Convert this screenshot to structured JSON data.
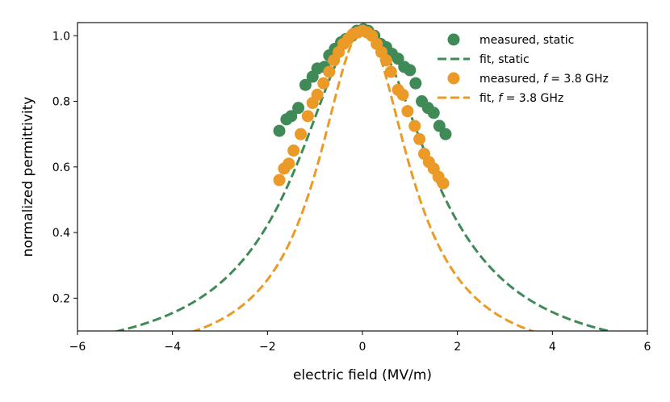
{
  "chart_data": {
    "type": "scatter",
    "title": "",
    "xlabel": "electric field (MV/m)",
    "ylabel": "normalized permittivity",
    "xlim": [
      -6,
      6
    ],
    "ylim": [
      0.1,
      1.04
    ],
    "xticks": [
      -6,
      -4,
      -2,
      0,
      2,
      4,
      6
    ],
    "xtick_labels": [
      "−6",
      "−4",
      "−2",
      "0",
      "2",
      "4",
      "6"
    ],
    "yticks": [
      0.2,
      0.4,
      0.6,
      0.8,
      1.0
    ],
    "ytick_labels": [
      "0.2",
      "0.4",
      "0.6",
      "0.8",
      "1.0"
    ],
    "grid": false,
    "legend_position": "top-right",
    "legend": [
      {
        "label": "measured, static",
        "kind": "marker",
        "color": "#3f8a57"
      },
      {
        "label": "fit, static",
        "kind": "dashed-line",
        "color": "#3f8a57"
      },
      {
        "label_prefix": "measured, ",
        "label_italic": "f",
        "label_suffix": " = 3.8 GHz",
        "kind": "marker",
        "color": "#eb9a27"
      },
      {
        "label_prefix": "fit, ",
        "label_italic": "f",
        "label_suffix": " = 3.8 GHz",
        "kind": "dashed-line",
        "color": "#eb9a27"
      }
    ],
    "series": [
      {
        "name": "measured, static",
        "kind": "scatter",
        "color": "#3f8a57",
        "x": [
          -1.75,
          -1.6,
          -1.5,
          -1.35,
          -1.2,
          -1.05,
          -0.95,
          -0.8,
          -0.7,
          -0.58,
          -0.45,
          -0.35,
          -0.22,
          -0.12,
          0.02,
          0.12,
          0.25,
          0.38,
          0.5,
          0.62,
          0.75,
          0.88,
          1.0,
          1.12,
          1.25,
          1.38,
          1.5,
          1.62,
          1.75
        ],
        "y": [
          0.71,
          0.745,
          0.755,
          0.78,
          0.85,
          0.875,
          0.9,
          0.905,
          0.94,
          0.96,
          0.98,
          0.99,
          1.0,
          1.015,
          1.02,
          1.015,
          1.0,
          0.975,
          0.965,
          0.945,
          0.93,
          0.905,
          0.895,
          0.855,
          0.8,
          0.78,
          0.765,
          0.725,
          0.7
        ]
      },
      {
        "name": "fit, static",
        "kind": "line",
        "style": "dashed",
        "color": "#3f8a57",
        "model": "lorentzian",
        "amplitude": 1.02,
        "center": 0.02,
        "half_width": 1.7
      },
      {
        "name": "measured, f = 3.8 GHz",
        "kind": "scatter",
        "color": "#eb9a27",
        "x": [
          -1.75,
          -1.65,
          -1.55,
          -1.45,
          -1.3,
          -1.15,
          -1.05,
          -0.95,
          -0.82,
          -0.7,
          -0.6,
          -0.5,
          -0.4,
          -0.3,
          -0.2,
          -0.1,
          0.0,
          0.1,
          0.2,
          0.3,
          0.4,
          0.5,
          0.6,
          0.75,
          0.85,
          0.95,
          1.1,
          1.2,
          1.3,
          1.4,
          1.5,
          1.6,
          1.7
        ],
        "y": [
          0.56,
          0.595,
          0.61,
          0.65,
          0.7,
          0.755,
          0.795,
          0.82,
          0.855,
          0.89,
          0.925,
          0.95,
          0.975,
          0.99,
          1.005,
          1.01,
          1.015,
          1.01,
          1.0,
          0.975,
          0.95,
          0.925,
          0.89,
          0.835,
          0.82,
          0.77,
          0.725,
          0.685,
          0.64,
          0.615,
          0.595,
          0.57,
          0.55
        ]
      },
      {
        "name": "fit, f = 3.8 GHz",
        "kind": "line",
        "style": "dashed",
        "color": "#eb9a27",
        "model": "lorentzian",
        "amplitude": 1.02,
        "center": 0.02,
        "half_width": 1.17
      }
    ]
  }
}
